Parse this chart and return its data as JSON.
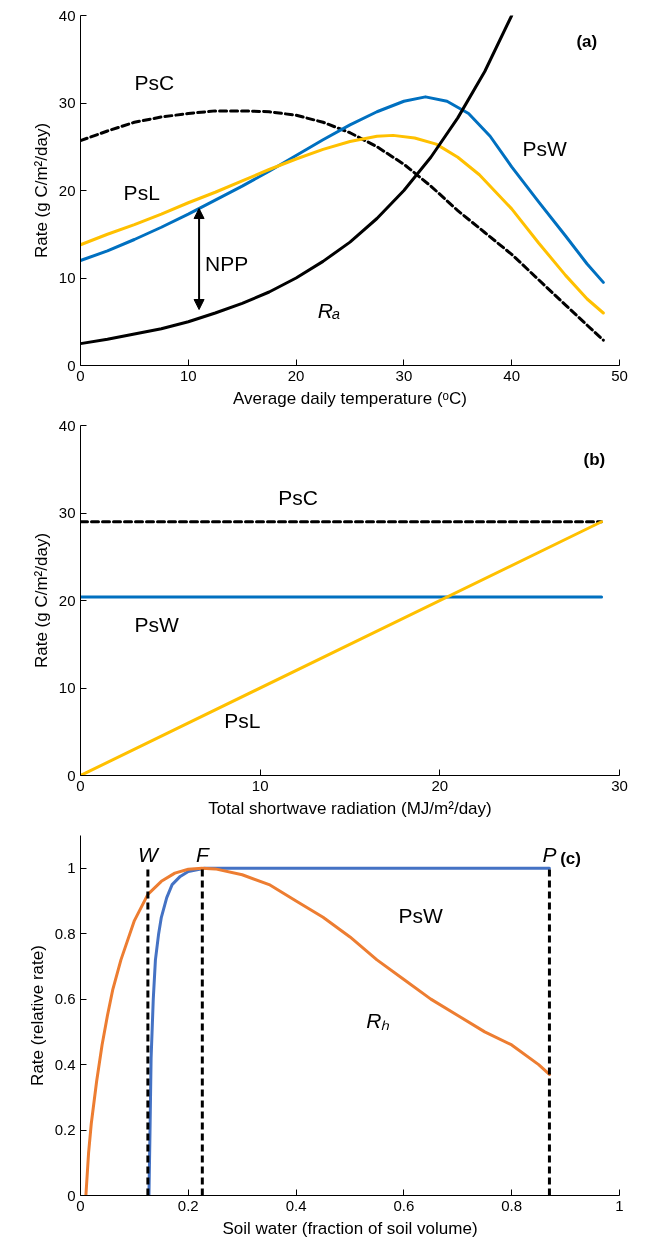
{
  "chart_data": [
    {
      "type": "line",
      "xlabel": "Average daily temperature (ᵒC)",
      "ylabel": "Rate (g C/m²/day)",
      "xlim": [
        0,
        50
      ],
      "ylim": [
        0,
        40
      ],
      "xticks": [
        0,
        10,
        20,
        30,
        40,
        50
      ],
      "yticks": [
        0,
        10,
        20,
        30,
        40
      ],
      "series": [
        {
          "name": "PsC",
          "color": "#000000",
          "line_style": "dashed",
          "x": [
            0,
            2.5,
            5,
            7.5,
            10,
            12.5,
            15,
            17.5,
            20,
            22.5,
            25,
            27.5,
            30,
            32.5,
            35,
            37.5,
            40,
            42.5,
            45,
            47,
            48.5
          ],
          "values": [
            25.7,
            26.8,
            27.8,
            28.4,
            28.8,
            29.1,
            29.1,
            29,
            28.6,
            27.8,
            26.6,
            25,
            23,
            20.5,
            17.7,
            15.2,
            12.7,
            9.8,
            6.9,
            4.6,
            2.9
          ]
        },
        {
          "name": "PsW",
          "color": "#0070c0",
          "x": [
            0,
            2.5,
            5,
            7.5,
            10,
            12.5,
            15,
            17.5,
            20,
            22.5,
            25,
            27.5,
            30,
            32,
            34,
            36,
            38,
            40,
            42.5,
            45,
            47,
            48.5
          ],
          "values": [
            12,
            13.1,
            14.4,
            15.8,
            17.3,
            18.9,
            20.5,
            22.2,
            24,
            25.8,
            27.5,
            29,
            30.2,
            30.7,
            30.2,
            28.8,
            26.2,
            22.7,
            18.7,
            14.8,
            11.6,
            9.5
          ]
        },
        {
          "name": "PsL",
          "color": "#ffc000",
          "x": [
            0,
            2.5,
            5,
            7.5,
            10,
            12.5,
            15,
            17.5,
            20,
            22.5,
            25,
            27.5,
            29,
            31,
            33,
            35,
            37,
            40,
            42.5,
            45,
            47,
            48.5
          ],
          "values": [
            13.8,
            15,
            16.1,
            17.3,
            18.6,
            19.8,
            21.1,
            22.4,
            23.6,
            24.7,
            25.6,
            26.2,
            26.3,
            26,
            25.3,
            23.8,
            21.8,
            17.9,
            14,
            10.3,
            7.6,
            6
          ]
        },
        {
          "name": "Rₐ",
          "color": "#000000",
          "x": [
            0,
            2.5,
            5,
            7.5,
            10,
            12.5,
            15,
            17.5,
            20,
            22.5,
            25,
            27.5,
            30,
            32.5,
            35,
            37.5,
            40
          ],
          "values": [
            2.5,
            3,
            3.6,
            4.2,
            5,
            6,
            7.1,
            8.4,
            10,
            11.9,
            14.1,
            16.8,
            20,
            23.8,
            28.3,
            33.6,
            40
          ]
        }
      ],
      "annotations": [
        "(a)",
        "NPP"
      ]
    },
    {
      "type": "line",
      "xlabel": "Total shortwave radiation (MJ/m²/day)",
      "ylabel": "Rate (g C/m²/day)",
      "xlim": [
        0,
        30
      ],
      "ylim": [
        0,
        40
      ],
      "xticks": [
        0,
        10,
        20,
        30
      ],
      "yticks": [
        0,
        10,
        20,
        30,
        40
      ],
      "series": [
        {
          "name": "PsC",
          "color": "#000000",
          "line_style": "dashed",
          "x": [
            0,
            29
          ],
          "values": [
            29,
            29
          ]
        },
        {
          "name": "PsW",
          "color": "#0070c0",
          "x": [
            0,
            29
          ],
          "values": [
            20.4,
            20.4
          ]
        },
        {
          "name": "PsL",
          "color": "#ffc000",
          "x": [
            0,
            29
          ],
          "values": [
            0,
            29
          ]
        }
      ],
      "annotations": [
        "(b)"
      ]
    },
    {
      "type": "line",
      "xlabel": "Soil water (fraction of soil volume)",
      "ylabel": "Rate (relative rate)",
      "xlim": [
        0,
        1
      ],
      "ylim": [
        0,
        1.1
      ],
      "xticks": [
        0,
        0.2,
        0.4,
        0.6,
        0.8,
        1
      ],
      "yticks": [
        0,
        0.2,
        0.4,
        0.6,
        0.8,
        1
      ],
      "series": [
        {
          "name": "PsW",
          "color": "#4472c4",
          "x": [
            0.127,
            0.129,
            0.131,
            0.135,
            0.139,
            0.145,
            0.15,
            0.16,
            0.17,
            0.185,
            0.2,
            0.23,
            0.87
          ],
          "values": [
            0,
            0.2,
            0.42,
            0.6,
            0.72,
            0.8,
            0.85,
            0.91,
            0.95,
            0.975,
            0.99,
            1,
            1
          ]
        },
        {
          "name": "Rₕ",
          "color": "#ed7d31",
          "x": [
            0.01,
            0.015,
            0.02,
            0.03,
            0.04,
            0.05,
            0.06,
            0.075,
            0.1,
            0.125,
            0.15,
            0.175,
            0.2,
            0.225,
            0.25,
            0.3,
            0.35,
            0.4,
            0.45,
            0.5,
            0.55,
            0.6,
            0.65,
            0.7,
            0.75,
            0.8,
            0.85,
            0.87
          ],
          "values": [
            0,
            0.13,
            0.22,
            0.35,
            0.46,
            0.55,
            0.63,
            0.72,
            0.84,
            0.92,
            0.96,
            0.985,
            0.997,
            1,
            0.998,
            0.98,
            0.95,
            0.9,
            0.85,
            0.79,
            0.72,
            0.66,
            0.6,
            0.55,
            0.5,
            0.46,
            0.4,
            0.37
          ]
        }
      ],
      "ref_lines": [
        {
          "axis": "x",
          "value": 0.125,
          "label": "W",
          "color": "#000000",
          "line_style": "dashed"
        },
        {
          "axis": "x",
          "value": 0.226,
          "label": "F",
          "color": "#000000",
          "line_style": "dashed"
        },
        {
          "axis": "x",
          "value": 0.87,
          "label": "P",
          "color": "#000000",
          "line_style": "dashed"
        }
      ],
      "annotations": [
        "(c)"
      ]
    }
  ]
}
